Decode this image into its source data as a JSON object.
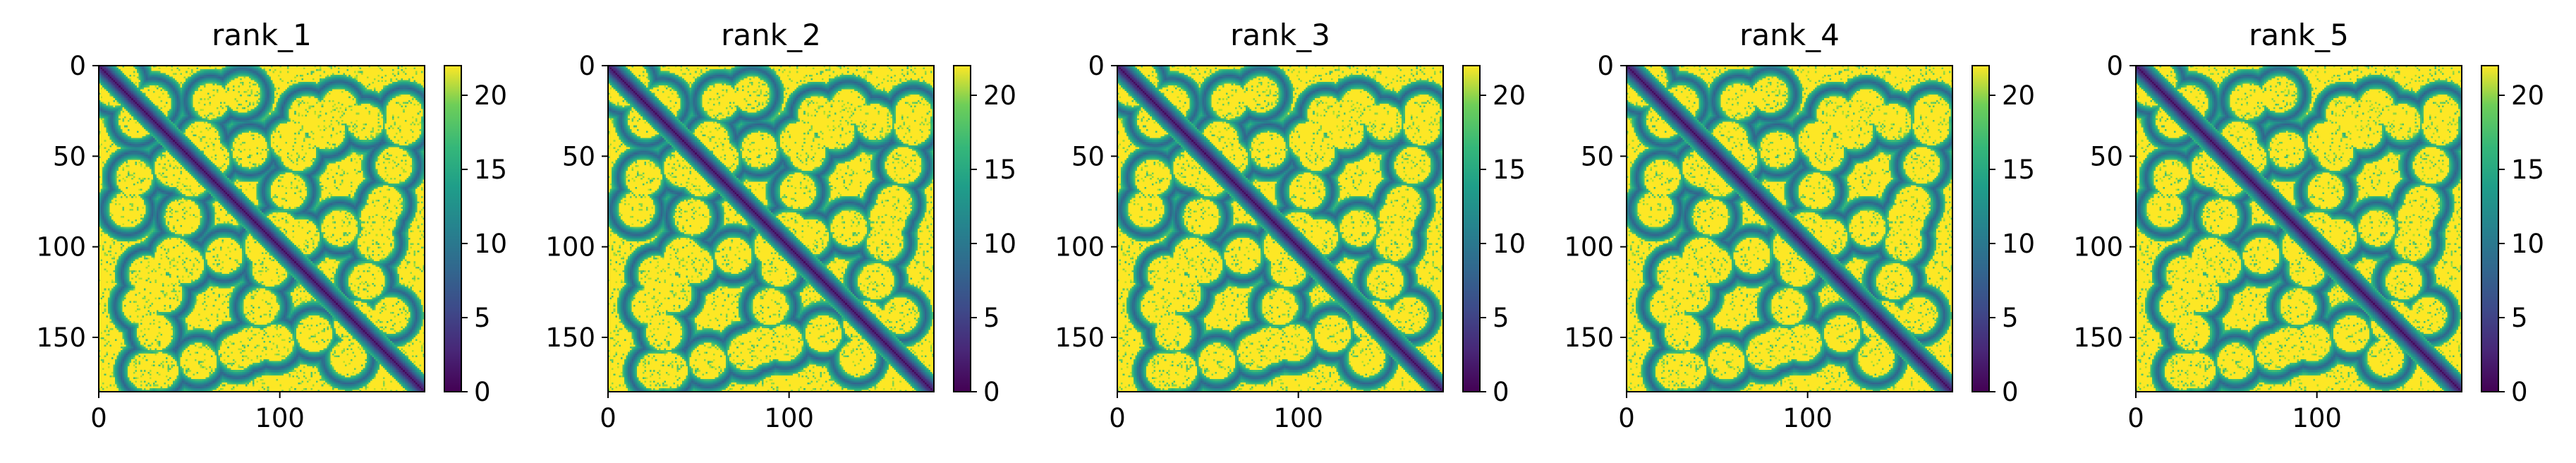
{
  "chart_data": [
    {
      "type": "heatmap",
      "title": "rank_1",
      "colormap": "viridis",
      "x_ticks": [
        "0",
        "100"
      ],
      "y_ticks": [
        "0",
        "50",
        "100",
        "150"
      ],
      "xlim": [
        0,
        180
      ],
      "ylim": [
        180,
        0
      ],
      "colorbar": {
        "ticks": [
          "0",
          "5",
          "10",
          "15",
          "20"
        ],
        "range": [
          0,
          22
        ]
      }
    },
    {
      "type": "heatmap",
      "title": "rank_2",
      "colormap": "viridis",
      "x_ticks": [
        "0",
        "100"
      ],
      "y_ticks": [
        "0",
        "50",
        "100",
        "150"
      ],
      "xlim": [
        0,
        180
      ],
      "ylim": [
        180,
        0
      ],
      "colorbar": {
        "ticks": [
          "0",
          "5",
          "10",
          "15",
          "20"
        ],
        "range": [
          0,
          22
        ]
      }
    },
    {
      "type": "heatmap",
      "title": "rank_3",
      "colormap": "viridis",
      "x_ticks": [
        "0",
        "100"
      ],
      "y_ticks": [
        "0",
        "50",
        "100",
        "150"
      ],
      "xlim": [
        0,
        180
      ],
      "ylim": [
        180,
        0
      ],
      "colorbar": {
        "ticks": [
          "0",
          "5",
          "10",
          "15",
          "20"
        ],
        "range": [
          0,
          22
        ]
      }
    },
    {
      "type": "heatmap",
      "title": "rank_4",
      "colormap": "viridis",
      "x_ticks": [
        "0",
        "100"
      ],
      "y_ticks": [
        "0",
        "50",
        "100",
        "150"
      ],
      "xlim": [
        0,
        180
      ],
      "ylim": [
        180,
        0
      ],
      "colorbar": {
        "ticks": [
          "0",
          "5",
          "10",
          "15",
          "20"
        ],
        "range": [
          0,
          22
        ]
      }
    },
    {
      "type": "heatmap",
      "title": "rank_5",
      "colormap": "viridis",
      "x_ticks": [
        "0",
        "100"
      ],
      "y_ticks": [
        "0",
        "50",
        "100",
        "150"
      ],
      "xlim": [
        0,
        180
      ],
      "ylim": [
        180,
        0
      ],
      "colorbar": {
        "ticks": [
          "0",
          "5",
          "10",
          "15",
          "20"
        ],
        "range": [
          0,
          22
        ]
      }
    }
  ]
}
